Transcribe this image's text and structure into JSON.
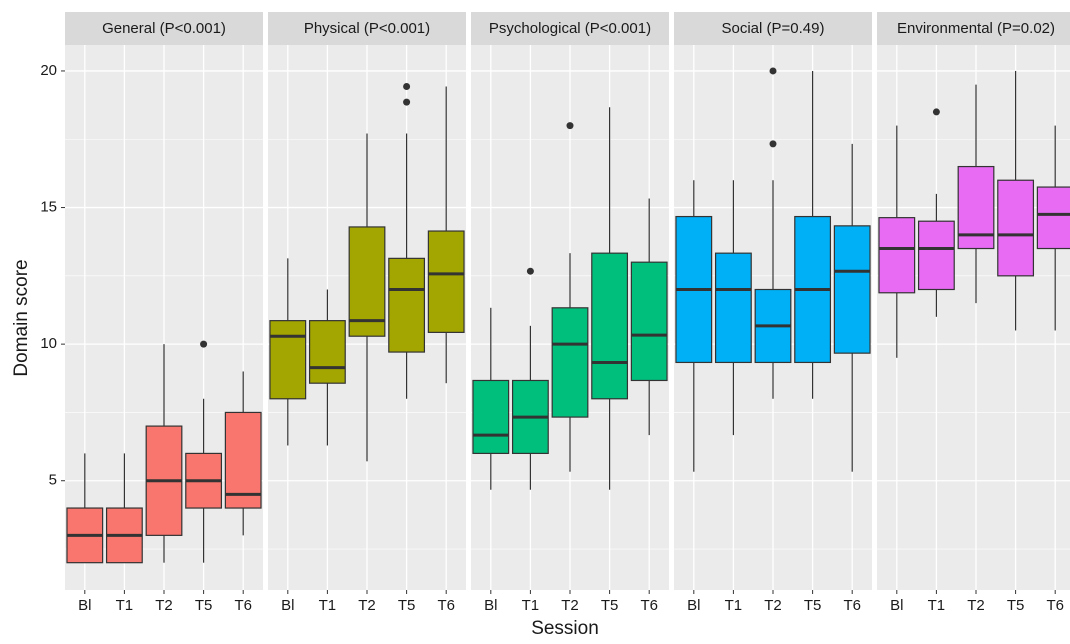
{
  "chart_data": {
    "type": "box",
    "xlabel": "Session",
    "ylabel": "Domain score",
    "categories": [
      "Bl",
      "T1",
      "T2",
      "T5",
      "T6"
    ],
    "ylim": [
      1,
      20.95
    ],
    "yticks": [
      5,
      10,
      15,
      20
    ],
    "minor_yticks": [
      2.5,
      7.5,
      12.5,
      17.5
    ],
    "grid": true,
    "facets": [
      {
        "title": "General (P<0.001)",
        "color": "#F8766D",
        "boxes": [
          {
            "min": 2,
            "q1": 2,
            "median": 3,
            "q3": 4,
            "max": 6
          },
          {
            "min": 2,
            "q1": 2,
            "median": 3,
            "q3": 4,
            "max": 6
          },
          {
            "min": 2,
            "q1": 3,
            "median": 5,
            "q3": 7,
            "max": 10
          },
          {
            "min": 2,
            "q1": 4,
            "median": 5,
            "q3": 6,
            "max": 8,
            "outliers": [
              10
            ]
          },
          {
            "min": 3,
            "q1": 4,
            "median": 4.5,
            "q3": 7.5,
            "max": 9
          }
        ]
      },
      {
        "title": "Physical (P<0.001)",
        "color": "#A3A500",
        "boxes": [
          {
            "min": 6.29,
            "q1": 8,
            "median": 10.29,
            "q3": 10.86,
            "max": 13.14
          },
          {
            "min": 6.29,
            "q1": 8.57,
            "median": 9.14,
            "q3": 10.86,
            "max": 12
          },
          {
            "min": 5.71,
            "q1": 10.29,
            "median": 10.86,
            "q3": 14.29,
            "max": 17.71
          },
          {
            "min": 8,
            "q1": 9.71,
            "median": 12,
            "q3": 13.14,
            "max": 17.71,
            "outliers": [
              18.86,
              19.43
            ]
          },
          {
            "min": 8.57,
            "q1": 10.43,
            "median": 12.57,
            "q3": 14.14,
            "max": 19.43
          }
        ]
      },
      {
        "title": "Psychological (P<0.001)",
        "color": "#00BF7D",
        "boxes": [
          {
            "min": 4.67,
            "q1": 6,
            "median": 6.67,
            "q3": 8.67,
            "max": 11.33
          },
          {
            "min": 4.67,
            "q1": 6,
            "median": 7.33,
            "q3": 8.67,
            "max": 10.67,
            "outliers": [
              12.67
            ]
          },
          {
            "min": 5.33,
            "q1": 7.33,
            "median": 10,
            "q3": 11.33,
            "max": 13.33,
            "outliers": [
              18
            ]
          },
          {
            "min": 4.67,
            "q1": 8,
            "median": 9.33,
            "q3": 13.33,
            "max": 18.67
          },
          {
            "min": 6.67,
            "q1": 8.67,
            "median": 10.33,
            "q3": 13,
            "max": 15.33
          }
        ]
      },
      {
        "title": "Social (P=0.49)",
        "color": "#00B0F6",
        "boxes": [
          {
            "min": 5.33,
            "q1": 9.33,
            "median": 12,
            "q3": 14.67,
            "max": 16
          },
          {
            "min": 6.67,
            "q1": 9.33,
            "median": 12,
            "q3": 13.33,
            "max": 16
          },
          {
            "min": 8,
            "q1": 9.33,
            "median": 10.67,
            "q3": 12,
            "max": 16,
            "outliers": [
              17.33,
              20
            ]
          },
          {
            "min": 8,
            "q1": 9.33,
            "median": 12,
            "q3": 14.67,
            "max": 20
          },
          {
            "min": 5.33,
            "q1": 9.67,
            "median": 12.67,
            "q3": 14.33,
            "max": 17.33
          }
        ]
      },
      {
        "title": "Environmental (P=0.02)",
        "color": "#E76BF3",
        "boxes": [
          {
            "min": 9.5,
            "q1": 11.88,
            "median": 13.5,
            "q3": 14.63,
            "max": 18
          },
          {
            "min": 11,
            "q1": 12,
            "median": 13.5,
            "q3": 14.5,
            "max": 15.5,
            "outliers": [
              18.5
            ]
          },
          {
            "min": 11.5,
            "q1": 13.5,
            "median": 14,
            "q3": 16.5,
            "max": 19.5
          },
          {
            "min": 10.5,
            "q1": 12.5,
            "median": 14,
            "q3": 16,
            "max": 20
          },
          {
            "min": 10.5,
            "q1": 13.5,
            "median": 14.75,
            "q3": 15.75,
            "max": 18
          }
        ]
      }
    ]
  }
}
